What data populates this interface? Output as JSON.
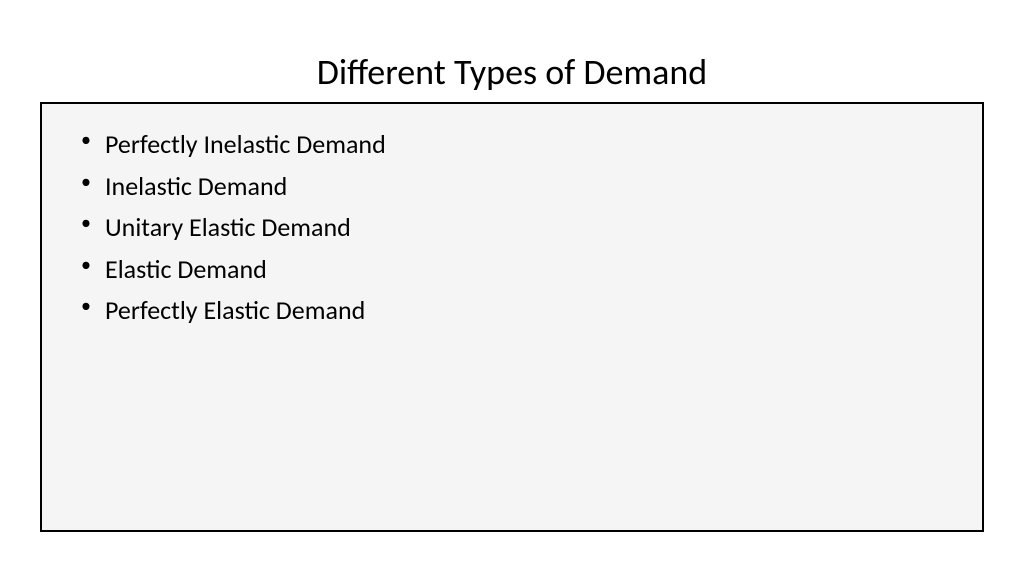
{
  "slide": {
    "title": "Different Types of Demand",
    "title_fontsize": 36,
    "title_color": "#000000",
    "background_color": "#ffffff",
    "content_box": {
      "border_color": "#000000",
      "border_width": 2,
      "background_color": "#f5f5f5"
    },
    "bullets": [
      "Perfectly Inelastic Demand",
      "Inelastic Demand",
      "Unitary Elastic Demand",
      "Elastic Demand",
      "Perfectly Elastic Demand"
    ],
    "bullet_fontsize": 26,
    "bullet_color": "#000000"
  }
}
